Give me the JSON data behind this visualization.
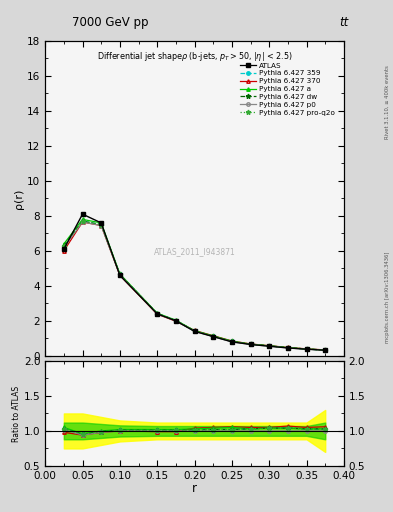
{
  "title_top": "7000 GeV pp",
  "title_top_right": "tt",
  "plot_title": "Differential jet shapeρ (b-jets, p_{T}>50, |η| < 2.5)",
  "ylabel_main": "ρ(r)",
  "ylabel_ratio": "Ratio to ATLAS",
  "xlabel": "r",
  "right_label_top": "Rivet 3.1.10, ≥ 400k events",
  "right_label_bottom": "mcplots.cern.ch [arXiv:1306.3436]",
  "watermark": "ATLAS_2011_I943871",
  "ylim_main": [
    0,
    18
  ],
  "ylim_ratio": [
    0.5,
    2
  ],
  "xlim": [
    0,
    0.4
  ],
  "r_values": [
    0.025,
    0.05,
    0.075,
    0.1,
    0.15,
    0.175,
    0.2,
    0.225,
    0.25,
    0.275,
    0.3,
    0.325,
    0.35,
    0.375
  ],
  "atlas_data": [
    6.1,
    8.1,
    7.6,
    4.6,
    2.4,
    2.0,
    1.4,
    1.1,
    0.8,
    0.65,
    0.55,
    0.45,
    0.38,
    0.32
  ],
  "ratio_yellow_lo": [
    0.75,
    0.75,
    0.8,
    0.85,
    0.88,
    0.88,
    0.88,
    0.88,
    0.88,
    0.88,
    0.88,
    0.88,
    0.88,
    0.7
  ],
  "ratio_yellow_hi": [
    1.25,
    1.25,
    1.2,
    1.15,
    1.12,
    1.12,
    1.12,
    1.12,
    1.12,
    1.12,
    1.12,
    1.12,
    1.12,
    1.3
  ],
  "ratio_green_lo": [
    0.88,
    0.88,
    0.9,
    0.92,
    0.93,
    0.93,
    0.93,
    0.93,
    0.93,
    0.93,
    0.93,
    0.93,
    0.93,
    0.88
  ],
  "ratio_green_hi": [
    1.12,
    1.12,
    1.1,
    1.08,
    1.07,
    1.07,
    1.07,
    1.07,
    1.07,
    1.07,
    1.07,
    1.07,
    1.07,
    1.12
  ],
  "pythia_359": [
    6.3,
    7.7,
    7.5,
    4.65,
    2.42,
    2.02,
    1.42,
    1.12,
    0.82,
    0.67,
    0.57,
    0.47,
    0.39,
    0.33
  ],
  "pythia_370": [
    6.0,
    7.65,
    7.45,
    4.6,
    2.38,
    1.98,
    1.45,
    1.15,
    0.85,
    0.68,
    0.58,
    0.48,
    0.4,
    0.34
  ],
  "pythia_a": [
    6.4,
    7.8,
    7.6,
    4.68,
    2.44,
    2.04,
    1.44,
    1.14,
    0.84,
    0.67,
    0.57,
    0.47,
    0.39,
    0.33
  ],
  "pythia_dw": [
    6.3,
    7.7,
    7.5,
    4.65,
    2.42,
    2.02,
    1.42,
    1.12,
    0.82,
    0.67,
    0.57,
    0.47,
    0.39,
    0.33
  ],
  "pythia_p0": [
    6.2,
    7.65,
    7.45,
    4.62,
    2.4,
    2.0,
    1.4,
    1.1,
    0.8,
    0.65,
    0.55,
    0.45,
    0.38,
    0.32
  ],
  "pythia_proq2o": [
    6.3,
    7.7,
    7.5,
    4.65,
    2.42,
    2.02,
    1.42,
    1.12,
    0.82,
    0.67,
    0.57,
    0.47,
    0.39,
    0.33
  ],
  "ratio_359": [
    1.03,
    0.95,
    0.99,
    1.01,
    1.01,
    1.01,
    1.01,
    1.02,
    1.02,
    1.03,
    1.04,
    1.04,
    1.03,
    1.03
  ],
  "ratio_370": [
    0.98,
    0.94,
    0.98,
    1.0,
    0.99,
    0.99,
    1.04,
    1.05,
    1.06,
    1.05,
    1.05,
    1.07,
    1.05,
    1.06
  ],
  "ratio_a": [
    1.05,
    0.96,
    1.0,
    1.02,
    1.02,
    1.02,
    1.03,
    1.04,
    1.05,
    1.03,
    1.04,
    1.04,
    1.03,
    1.03
  ],
  "ratio_dw": [
    1.03,
    0.95,
    0.99,
    1.01,
    1.01,
    1.01,
    1.01,
    1.02,
    1.02,
    1.03,
    1.04,
    1.04,
    1.03,
    1.03
  ],
  "ratio_p0": [
    1.02,
    0.94,
    0.98,
    1.0,
    1.0,
    1.0,
    1.0,
    1.0,
    1.0,
    1.0,
    1.0,
    1.0,
    1.0,
    1.0
  ],
  "ratio_proq2o": [
    1.03,
    0.95,
    0.99,
    1.01,
    1.01,
    1.01,
    1.01,
    1.02,
    1.02,
    1.03,
    1.04,
    1.04,
    1.03,
    1.03
  ],
  "color_359": "#00cccc",
  "color_370": "#cc0000",
  "color_a": "#00cc00",
  "color_dw": "#006600",
  "color_p0": "#888888",
  "color_proq2o": "#33aa33",
  "yellow_band": "#ffff00",
  "green_band": "#00cc00"
}
